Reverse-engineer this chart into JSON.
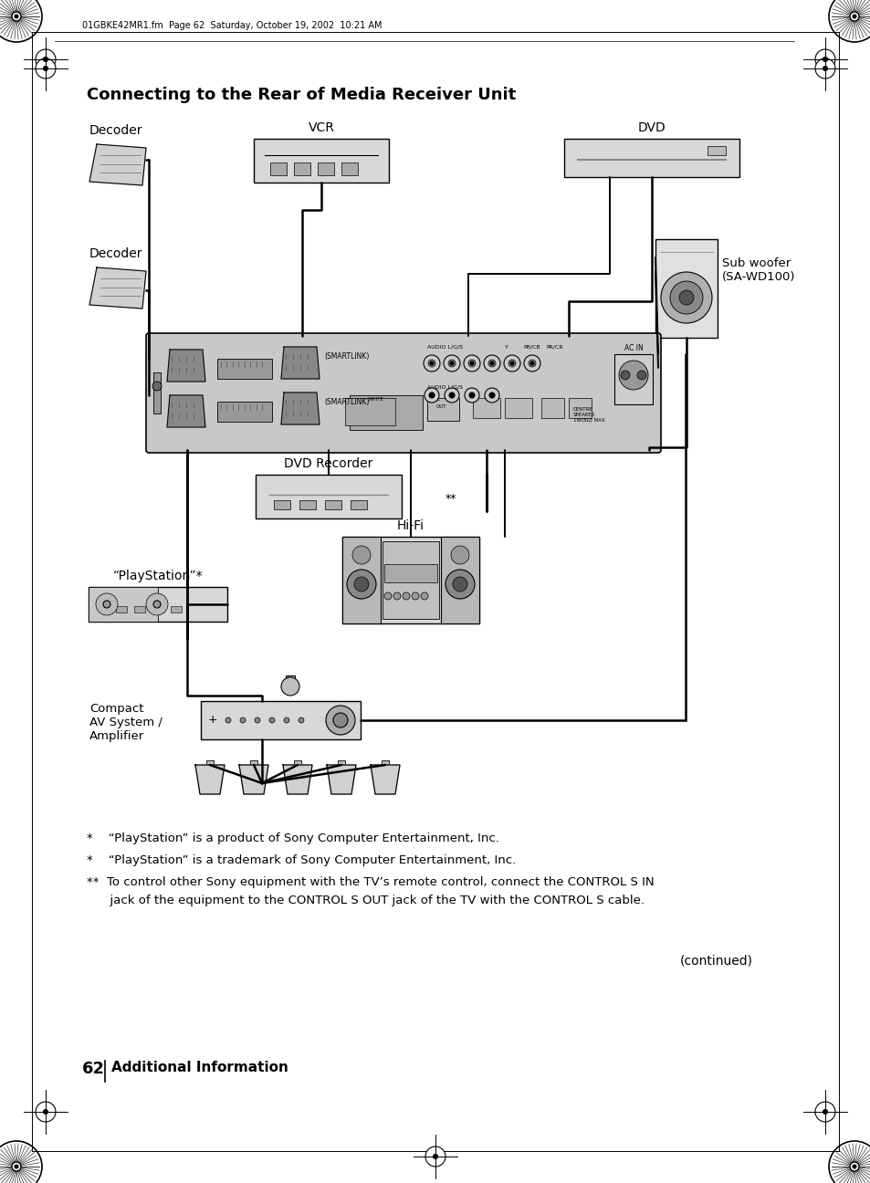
{
  "page_header": "01GBKE42MR1.fm  Page 62  Saturday, October 19, 2002  10:21 AM",
  "title": "Connecting to the Rear of Media Receiver Unit",
  "page_number": "62",
  "page_label": "Additional Information",
  "fn1": "*    “PlayStation” is a product of Sony Computer Entertainment, Inc.",
  "fn2": "*    “PlayStation” is a trademark of Sony Computer Entertainment, Inc.",
  "fn3a": "**  To control other Sony equipment with the TV’s remote control, connect the CONTROL S IN",
  "fn3b": "      jack of the equipment to the CONTROL S OUT jack of the TV with the CONTROL S cable.",
  "continued": "(continued)",
  "bg_color": "#ffffff",
  "text_color": "#000000",
  "label_decoder1": "Decoder",
  "label_vcr": "VCR",
  "label_dvd": "DVD",
  "label_decoder2": "Decoder",
  "label_subwoofer": "Sub woofer\n(SA-WD100)",
  "label_dvdrecorder": "DVD Recorder",
  "label_doublestar": "**",
  "label_hifi": "Hi-Fi",
  "label_playstation": "“PlayStation”*",
  "label_compact": "Compact\nAV System /\nAmplifier"
}
